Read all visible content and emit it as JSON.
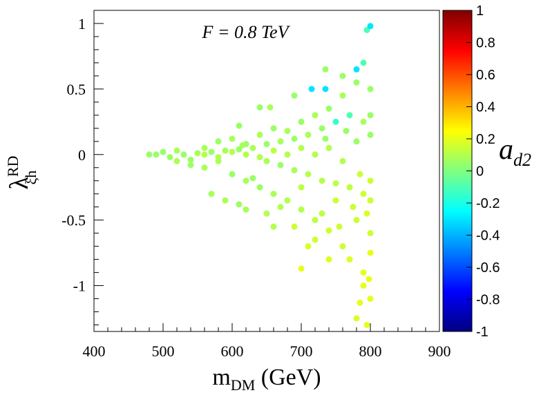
{
  "chart_data": {
    "type": "scatter",
    "annotation": "F = 0.8 TeV",
    "xlabel_main": "m",
    "xlabel_sub": "DM",
    "xlabel_unit": " (GeV)",
    "ylabel_main": "λ",
    "ylabel_sup": "RD",
    "ylabel_sub": "ξh",
    "colorbar_label_main": "a",
    "colorbar_label_sub": "d2",
    "xlim": [
      400,
      900
    ],
    "ylim": [
      -1.35,
      1.1
    ],
    "x_ticks": [
      400,
      500,
      600,
      700,
      800,
      900
    ],
    "y_ticks": [
      -1,
      -0.5,
      0,
      0.5,
      1
    ],
    "y_tick_labels": [
      "-1",
      "-0.5",
      "0",
      "0.5",
      "1"
    ],
    "colorbar_range": [
      -1,
      1
    ],
    "colorbar_ticks": [
      "1",
      "0.8",
      "0.6",
      "0.4",
      "0.2",
      "0",
      "-0.2",
      "-0.4",
      "-0.6",
      "-0.8",
      "-1"
    ],
    "colormap_stops": [
      "#00007f",
      "#0000ff",
      "#0080ff",
      "#00ffff",
      "#80ff80",
      "#ffff00",
      "#ff8000",
      "#ff0000",
      "#7f0000"
    ],
    "points": [
      [
        480,
        0.0,
        0.05
      ],
      [
        490,
        0.0,
        0.05
      ],
      [
        500,
        0.02,
        0.05
      ],
      [
        510,
        -0.02,
        0.05
      ],
      [
        520,
        0.03,
        0.08
      ],
      [
        540,
        -0.04,
        0.05
      ],
      [
        560,
        0.05,
        0.08
      ],
      [
        580,
        0.1,
        0.05
      ],
      [
        600,
        0.12,
        0.08
      ],
      [
        620,
        0.08,
        0.05
      ],
      [
        640,
        0.15,
        0.08
      ],
      [
        660,
        0.2,
        0.05
      ],
      [
        680,
        0.18,
        0.08
      ],
      [
        700,
        0.25,
        0.05
      ],
      [
        720,
        0.3,
        0.08
      ],
      [
        740,
        0.35,
        0.05
      ],
      [
        760,
        0.45,
        0.08
      ],
      [
        780,
        0.55,
        0.05
      ],
      [
        790,
        0.7,
        -0.1
      ],
      [
        795,
        0.95,
        -0.1
      ],
      [
        800,
        0.98,
        -0.3
      ],
      [
        780,
        0.65,
        -0.3
      ],
      [
        760,
        0.6,
        0.05
      ],
      [
        735,
        0.65,
        0.05
      ],
      [
        715,
        0.5,
        -0.3
      ],
      [
        735,
        0.5,
        -0.3
      ],
      [
        690,
        0.45,
        0.05
      ],
      [
        655,
        0.36,
        0.08
      ],
      [
        640,
        0.36,
        0.05
      ],
      [
        610,
        0.22,
        0.05
      ],
      [
        615,
        0.07,
        0.08
      ],
      [
        580,
        -0.05,
        0.08
      ],
      [
        560,
        -0.1,
        0.08
      ],
      [
        540,
        -0.08,
        0.05
      ],
      [
        520,
        -0.05,
        0.08
      ],
      [
        600,
        -0.15,
        0.05
      ],
      [
        620,
        -0.2,
        0.08
      ],
      [
        640,
        -0.25,
        0.05
      ],
      [
        660,
        -0.3,
        0.08
      ],
      [
        680,
        -0.35,
        0.1
      ],
      [
        700,
        -0.42,
        0.1
      ],
      [
        720,
        -0.5,
        0.12
      ],
      [
        740,
        -0.58,
        0.15
      ],
      [
        760,
        -0.7,
        0.15
      ],
      [
        770,
        -0.8,
        0.18
      ],
      [
        790,
        -0.9,
        0.2
      ],
      [
        800,
        -1.1,
        0.2
      ],
      [
        795,
        -1.3,
        0.2
      ],
      [
        780,
        -1.25,
        0.18
      ],
      [
        700,
        -0.87,
        0.2
      ],
      [
        720,
        -0.65,
        0.15
      ],
      [
        650,
        -0.45,
        0.1
      ],
      [
        610,
        -0.38,
        0.05
      ],
      [
        590,
        -0.35,
        0.08
      ],
      [
        570,
        -0.3,
        0.08
      ],
      [
        630,
        -0.18,
        0.05
      ],
      [
        700,
        -0.25,
        0.12
      ],
      [
        750,
        -0.35,
        0.15
      ],
      [
        780,
        -0.5,
        0.15
      ],
      [
        800,
        -0.6,
        0.15
      ],
      [
        800,
        -0.75,
        0.2
      ],
      [
        790,
        -1.0,
        0.2
      ],
      [
        800,
        0.5,
        0.05
      ],
      [
        800,
        0.3,
        0.05
      ],
      [
        800,
        0.15,
        0.05
      ],
      [
        800,
        -0.2,
        0.15
      ],
      [
        800,
        -0.35,
        0.15
      ],
      [
        790,
        0.25,
        0.08
      ],
      [
        770,
        0.3,
        -0.1
      ],
      [
        750,
        0.25,
        -0.15
      ],
      [
        730,
        0.2,
        0.05
      ],
      [
        710,
        0.15,
        0.08
      ],
      [
        690,
        0.12,
        0.05
      ],
      [
        670,
        0.1,
        0.08
      ],
      [
        650,
        0.08,
        0.05
      ],
      [
        630,
        0.05,
        0.08
      ],
      [
        610,
        0.04,
        0.05
      ],
      [
        590,
        0.03,
        0.08
      ],
      [
        570,
        0.02,
        0.05
      ],
      [
        550,
        0.01,
        0.08
      ],
      [
        530,
        0.0,
        0.05
      ],
      [
        650,
        -0.05,
        0.08
      ],
      [
        670,
        -0.08,
        0.05
      ],
      [
        690,
        -0.12,
        0.08
      ],
      [
        710,
        -0.15,
        0.1
      ],
      [
        730,
        -0.2,
        0.1
      ],
      [
        750,
        -0.22,
        0.12
      ],
      [
        770,
        -0.25,
        0.12
      ],
      [
        790,
        -0.3,
        0.15
      ],
      [
        720,
        0.0,
        0.1
      ],
      [
        740,
        0.05,
        0.1
      ],
      [
        760,
        -0.05,
        0.1
      ],
      [
        780,
        0.1,
        0.05
      ],
      [
        785,
        -0.15,
        0.15
      ],
      [
        680,
        0.0,
        0.1
      ],
      [
        700,
        0.05,
        0.1
      ],
      [
        660,
        0.03,
        0.12
      ],
      [
        640,
        -0.02,
        0.1
      ],
      [
        620,
        0.0,
        0.1
      ],
      [
        600,
        0.02,
        0.1
      ],
      [
        580,
        -0.02,
        0.1
      ],
      [
        560,
        0.0,
        0.1
      ],
      [
        735,
        0.12,
        0.05
      ],
      [
        765,
        0.18,
        0.05
      ],
      [
        775,
        -0.4,
        0.15
      ],
      [
        795,
        -0.45,
        0.18
      ],
      [
        798,
        -0.95,
        0.2
      ],
      [
        785,
        -1.13,
        0.2
      ],
      [
        690,
        -0.55,
        0.15
      ],
      [
        710,
        -0.7,
        0.18
      ],
      [
        740,
        -0.8,
        0.18
      ],
      [
        660,
        -0.55,
        0.1
      ],
      [
        620,
        -0.42,
        0.08
      ],
      [
        670,
        -0.4,
        0.1
      ],
      [
        730,
        -0.45,
        0.12
      ],
      [
        755,
        -0.55,
        0.15
      ]
    ]
  }
}
